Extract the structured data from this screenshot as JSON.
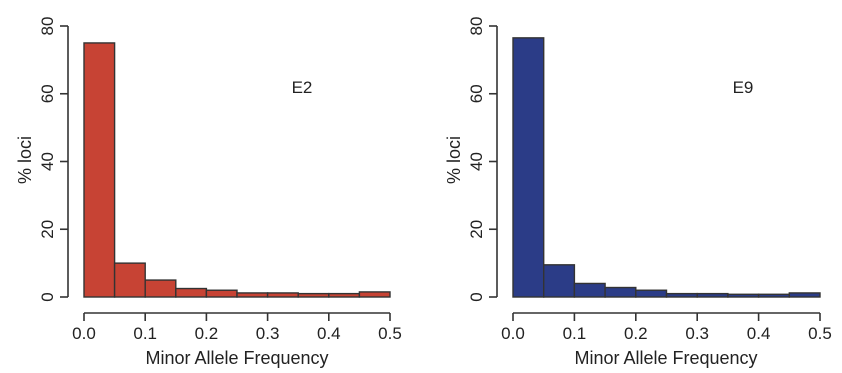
{
  "chart_data": [
    {
      "type": "bar",
      "bin_edges": [
        0.0,
        0.05,
        0.1,
        0.15,
        0.2,
        0.25,
        0.3,
        0.35,
        0.4,
        0.45,
        0.5
      ],
      "values": [
        75,
        10,
        5,
        2.5,
        2,
        1.2,
        1.2,
        1,
        1,
        1.5
      ],
      "label": "E2",
      "xlabel": "Minor Allele Frequency",
      "ylabel": "% loci",
      "xlim": [
        0,
        0.5
      ],
      "ylim": [
        0,
        80
      ],
      "x_ticks": [
        "0.0",
        "0.1",
        "0.2",
        "0.3",
        "0.4",
        "0.5"
      ],
      "y_ticks": [
        "0",
        "20",
        "40",
        "60",
        "80"
      ],
      "color": "#c74334"
    },
    {
      "type": "bar",
      "bin_edges": [
        0.0,
        0.05,
        0.1,
        0.15,
        0.2,
        0.25,
        0.3,
        0.35,
        0.4,
        0.45,
        0.5
      ],
      "values": [
        76.5,
        9.5,
        4,
        2.8,
        2,
        1,
        1,
        0.8,
        0.8,
        1.2
      ],
      "label": "E9",
      "xlabel": "Minor Allele Frequency",
      "ylabel": "% loci",
      "xlim": [
        0,
        0.5
      ],
      "ylim": [
        0,
        80
      ],
      "x_ticks": [
        "0.0",
        "0.1",
        "0.2",
        "0.3",
        "0.4",
        "0.5"
      ],
      "y_ticks": [
        "0",
        "20",
        "40",
        "60",
        "80"
      ],
      "color": "#2b3c87"
    }
  ]
}
